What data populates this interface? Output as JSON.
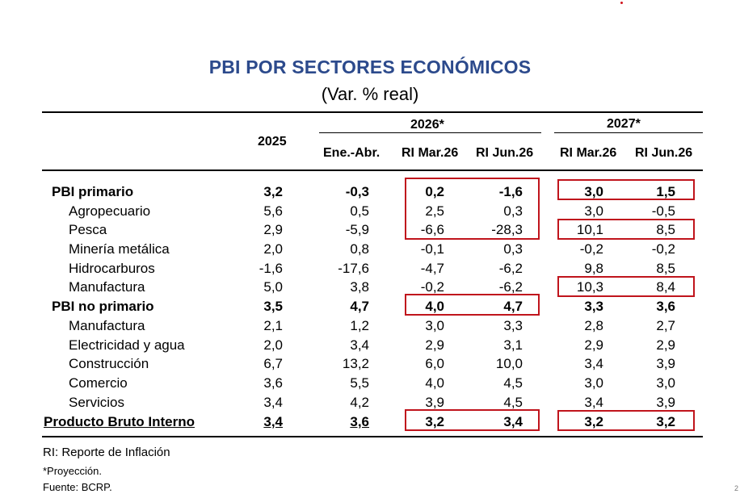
{
  "title": "PBI POR SECTORES ECONÓMICOS",
  "subtitle": "(Var. % real)",
  "headers": {
    "y2025": "2025",
    "y2026": "2026*",
    "y2027": "2027*",
    "ene_abr": "Ene.-Abr.",
    "ri_mar26_a": "RI Mar.26",
    "ri_jun26_a": "RI Jun.26",
    "ri_mar26_b": "RI Mar.26",
    "ri_jun26_b": "RI Jun.26"
  },
  "rows": [
    {
      "label": "PBI primario",
      "values": [
        "3,2",
        "-0,3",
        "0,2",
        "-1,6",
        "3,0",
        "1,5"
      ]
    },
    {
      "label": "Agropecuario",
      "values": [
        "5,6",
        "0,5",
        "2,5",
        "0,3",
        "3,0",
        "-0,5"
      ]
    },
    {
      "label": "Pesca",
      "values": [
        "2,9",
        "-5,9",
        "-6,6",
        "-28,3",
        "10,1",
        "8,5"
      ]
    },
    {
      "label": "Minería metálica",
      "values": [
        "2,0",
        "0,8",
        "-0,1",
        "0,3",
        "-0,2",
        "-0,2"
      ]
    },
    {
      "label": "Hidrocarburos",
      "values": [
        "-1,6",
        "-17,6",
        "-4,7",
        "-6,2",
        "9,8",
        "8,5"
      ]
    },
    {
      "label": "Manufactura",
      "values": [
        "5,0",
        "3,8",
        "-0,2",
        "-6,2",
        "10,3",
        "8,4"
      ]
    },
    {
      "label": "PBI no primario",
      "values": [
        "3,5",
        "4,7",
        "4,0",
        "4,7",
        "3,3",
        "3,6"
      ]
    },
    {
      "label": "Manufactura",
      "values": [
        "2,1",
        "1,2",
        "3,0",
        "3,3",
        "2,8",
        "2,7"
      ]
    },
    {
      "label": "Electricidad y agua",
      "values": [
        "2,0",
        "3,4",
        "2,9",
        "3,1",
        "2,9",
        "2,9"
      ]
    },
    {
      "label": "Construcción",
      "values": [
        "6,7",
        "13,2",
        "6,0",
        "10,0",
        "3,4",
        "3,9"
      ]
    },
    {
      "label": "Comercio",
      "values": [
        "3,6",
        "5,5",
        "4,0",
        "4,5",
        "3,0",
        "3,0"
      ]
    },
    {
      "label": "Servicios",
      "values": [
        "3,4",
        "4,2",
        "3,9",
        "4,5",
        "3,4",
        "3,9"
      ]
    },
    {
      "label": "Producto Bruto Interno",
      "values": [
        "3,4",
        "3,6",
        "3,2",
        "3,4",
        "3,2",
        "3,2"
      ]
    }
  ],
  "notes": {
    "ri": "RI: Reporte de Inflación",
    "proy": "*Proyección.",
    "fuente": "Fuente: BCRP."
  },
  "page_number": "2",
  "colors": {
    "title": "#2c4a8c",
    "highlight_box": "#c0141c"
  }
}
